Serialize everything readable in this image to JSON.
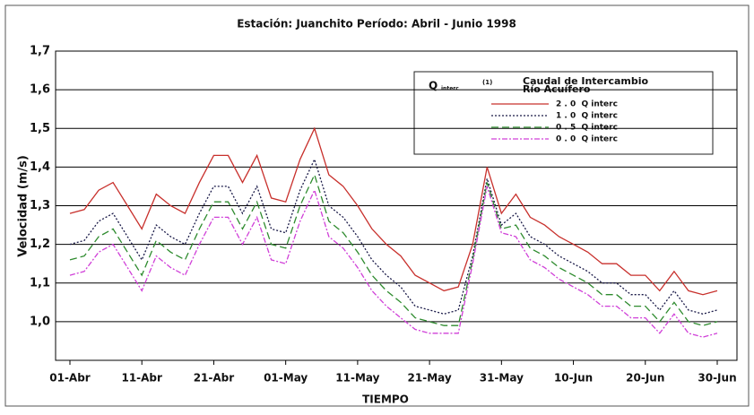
{
  "chart_data": {
    "type": "line",
    "title": "Estación: Juanchito   Período: Abril - Junio 1998",
    "x_label": "TIEMPO",
    "y_label": "Velocidad (m/s)",
    "categories": [
      "01-Abr",
      null,
      null,
      null,
      null,
      "11-Abr",
      null,
      null,
      null,
      null,
      "21-Abr",
      null,
      null,
      null,
      null,
      "01-May",
      null,
      null,
      null,
      null,
      "11-May",
      null,
      null,
      null,
      null,
      "21-May",
      null,
      null,
      null,
      null,
      "31-May",
      null,
      null,
      null,
      null,
      "10-Jun",
      null,
      null,
      null,
      null,
      "20-Jun",
      null,
      null,
      null,
      null,
      "30-Jun"
    ],
    "ylim": [
      0.9,
      1.7
    ],
    "yticks": [
      0.9,
      {
        "value": 1,
        "label": "1,0"
      },
      {
        "value": 1.1,
        "label": "1,1"
      },
      {
        "value": 1.2,
        "label": "1,2"
      },
      {
        "value": 1.3,
        "label": "1,3"
      },
      {
        "value": 1.4,
        "label": "1,4"
      },
      {
        "value": 1.5,
        "label": "1,5"
      },
      {
        "value": 1.6,
        "label": "1,6"
      },
      {
        "value": 1.7,
        "label": "1,7"
      }
    ],
    "grid": true,
    "legend_title": "Q",
    "legend_subscript": "interc",
    "legend_note": "(1)",
    "legend_heading": [
      "Caudal de Intercambio",
      "Río Acuífero"
    ],
    "series": [
      {
        "name": "2 . 0  Q interc",
        "color": "#c8302c",
        "dash": "none",
        "values": [
          1.28,
          1.29,
          1.34,
          1.36,
          1.3,
          1.24,
          1.33,
          1.3,
          1.28,
          1.36,
          1.43,
          1.43,
          1.36,
          1.43,
          1.32,
          1.31,
          1.42,
          1.5,
          1.38,
          1.35,
          1.3,
          1.24,
          1.2,
          1.17,
          1.12,
          1.1,
          1.08,
          1.09,
          1.2,
          1.4,
          1.28,
          1.33,
          1.27,
          1.25,
          1.22,
          1.2,
          1.18,
          1.15,
          1.15,
          1.12,
          1.12,
          1.08,
          1.13,
          1.08,
          1.07,
          1.08
        ]
      },
      {
        "name": "1 . 0  Q interc",
        "color": "#1a1a48",
        "dash": "2,2",
        "values": [
          1.2,
          1.21,
          1.26,
          1.28,
          1.22,
          1.16,
          1.25,
          1.22,
          1.2,
          1.28,
          1.35,
          1.35,
          1.28,
          1.35,
          1.24,
          1.23,
          1.34,
          1.42,
          1.3,
          1.27,
          1.22,
          1.16,
          1.12,
          1.09,
          1.04,
          1.03,
          1.02,
          1.03,
          1.17,
          1.37,
          1.25,
          1.28,
          1.22,
          1.2,
          1.17,
          1.15,
          1.13,
          1.1,
          1.1,
          1.07,
          1.07,
          1.03,
          1.08,
          1.03,
          1.02,
          1.03
        ]
      },
      {
        "name": "0 . 5  Q interc",
        "color": "#2e8b2e",
        "dash": "8,4",
        "values": [
          1.16,
          1.17,
          1.22,
          1.24,
          1.18,
          1.12,
          1.21,
          1.18,
          1.16,
          1.24,
          1.31,
          1.31,
          1.24,
          1.31,
          1.2,
          1.19,
          1.3,
          1.38,
          1.26,
          1.23,
          1.18,
          1.12,
          1.08,
          1.05,
          1.01,
          1.0,
          0.99,
          0.99,
          1.16,
          1.36,
          1.24,
          1.25,
          1.19,
          1.17,
          1.14,
          1.12,
          1.1,
          1.07,
          1.07,
          1.04,
          1.04,
          1.0,
          1.05,
          1.0,
          0.99,
          1.0
        ]
      },
      {
        "name": "0 . 0  Q interc",
        "color": "#d040d8",
        "dash": "6,2,2,2",
        "values": [
          1.12,
          1.13,
          1.18,
          1.2,
          1.14,
          1.08,
          1.17,
          1.14,
          1.12,
          1.2,
          1.27,
          1.27,
          1.2,
          1.27,
          1.16,
          1.15,
          1.26,
          1.34,
          1.22,
          1.19,
          1.14,
          1.08,
          1.04,
          1.01,
          0.98,
          0.97,
          0.97,
          0.97,
          1.15,
          1.35,
          1.23,
          1.22,
          1.16,
          1.14,
          1.11,
          1.09,
          1.07,
          1.04,
          1.04,
          1.01,
          1.01,
          0.97,
          1.02,
          0.97,
          0.96,
          0.97
        ]
      }
    ]
  }
}
